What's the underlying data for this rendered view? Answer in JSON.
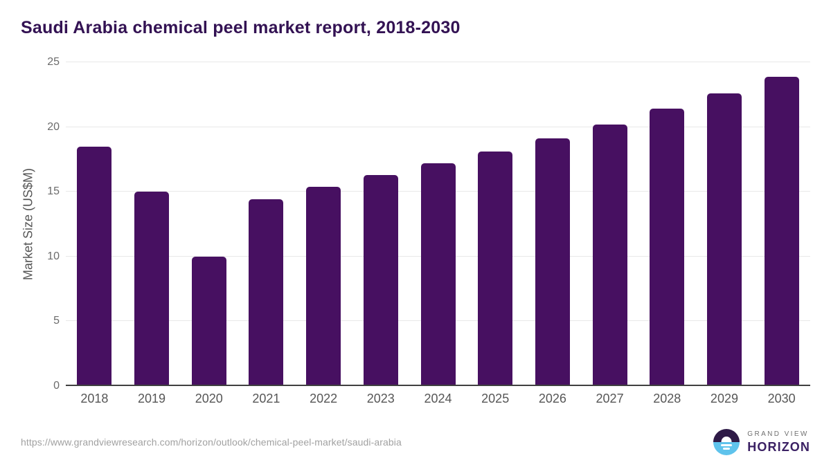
{
  "title": "Saudi Arabia chemical peel market report, 2018-2030",
  "chart_data": {
    "type": "bar",
    "title": "Saudi Arabia chemical peel market report, 2018-2030",
    "categories": [
      "2018",
      "2019",
      "2020",
      "2021",
      "2022",
      "2023",
      "2024",
      "2025",
      "2026",
      "2027",
      "2028",
      "2029",
      "2030"
    ],
    "values": [
      18.5,
      15.0,
      10.0,
      14.4,
      15.4,
      16.3,
      17.2,
      18.1,
      19.1,
      20.2,
      21.4,
      22.6,
      23.9
    ],
    "xlabel": "",
    "ylabel": "Market Size (US$M)",
    "ylim": [
      0,
      25
    ],
    "yticks": [
      0,
      5,
      10,
      15,
      20,
      25
    ],
    "grid": true,
    "legend": "none",
    "bar_color": "#471061"
  },
  "colors": {
    "accent_purple": "#471061",
    "title_text": "#331253",
    "axis_line": "#3f3f3f",
    "gridline": "#e8e8e8",
    "logo_purple": "#2e1a47",
    "logo_blue": "#5fc3ec"
  },
  "footer": {
    "source_url": "https://www.grandviewresearch.com/horizon/outlook/chemical-peel-market/saudi-arabia",
    "logo": {
      "line1": "GRAND VIEW",
      "line2": "HORIZON"
    }
  }
}
